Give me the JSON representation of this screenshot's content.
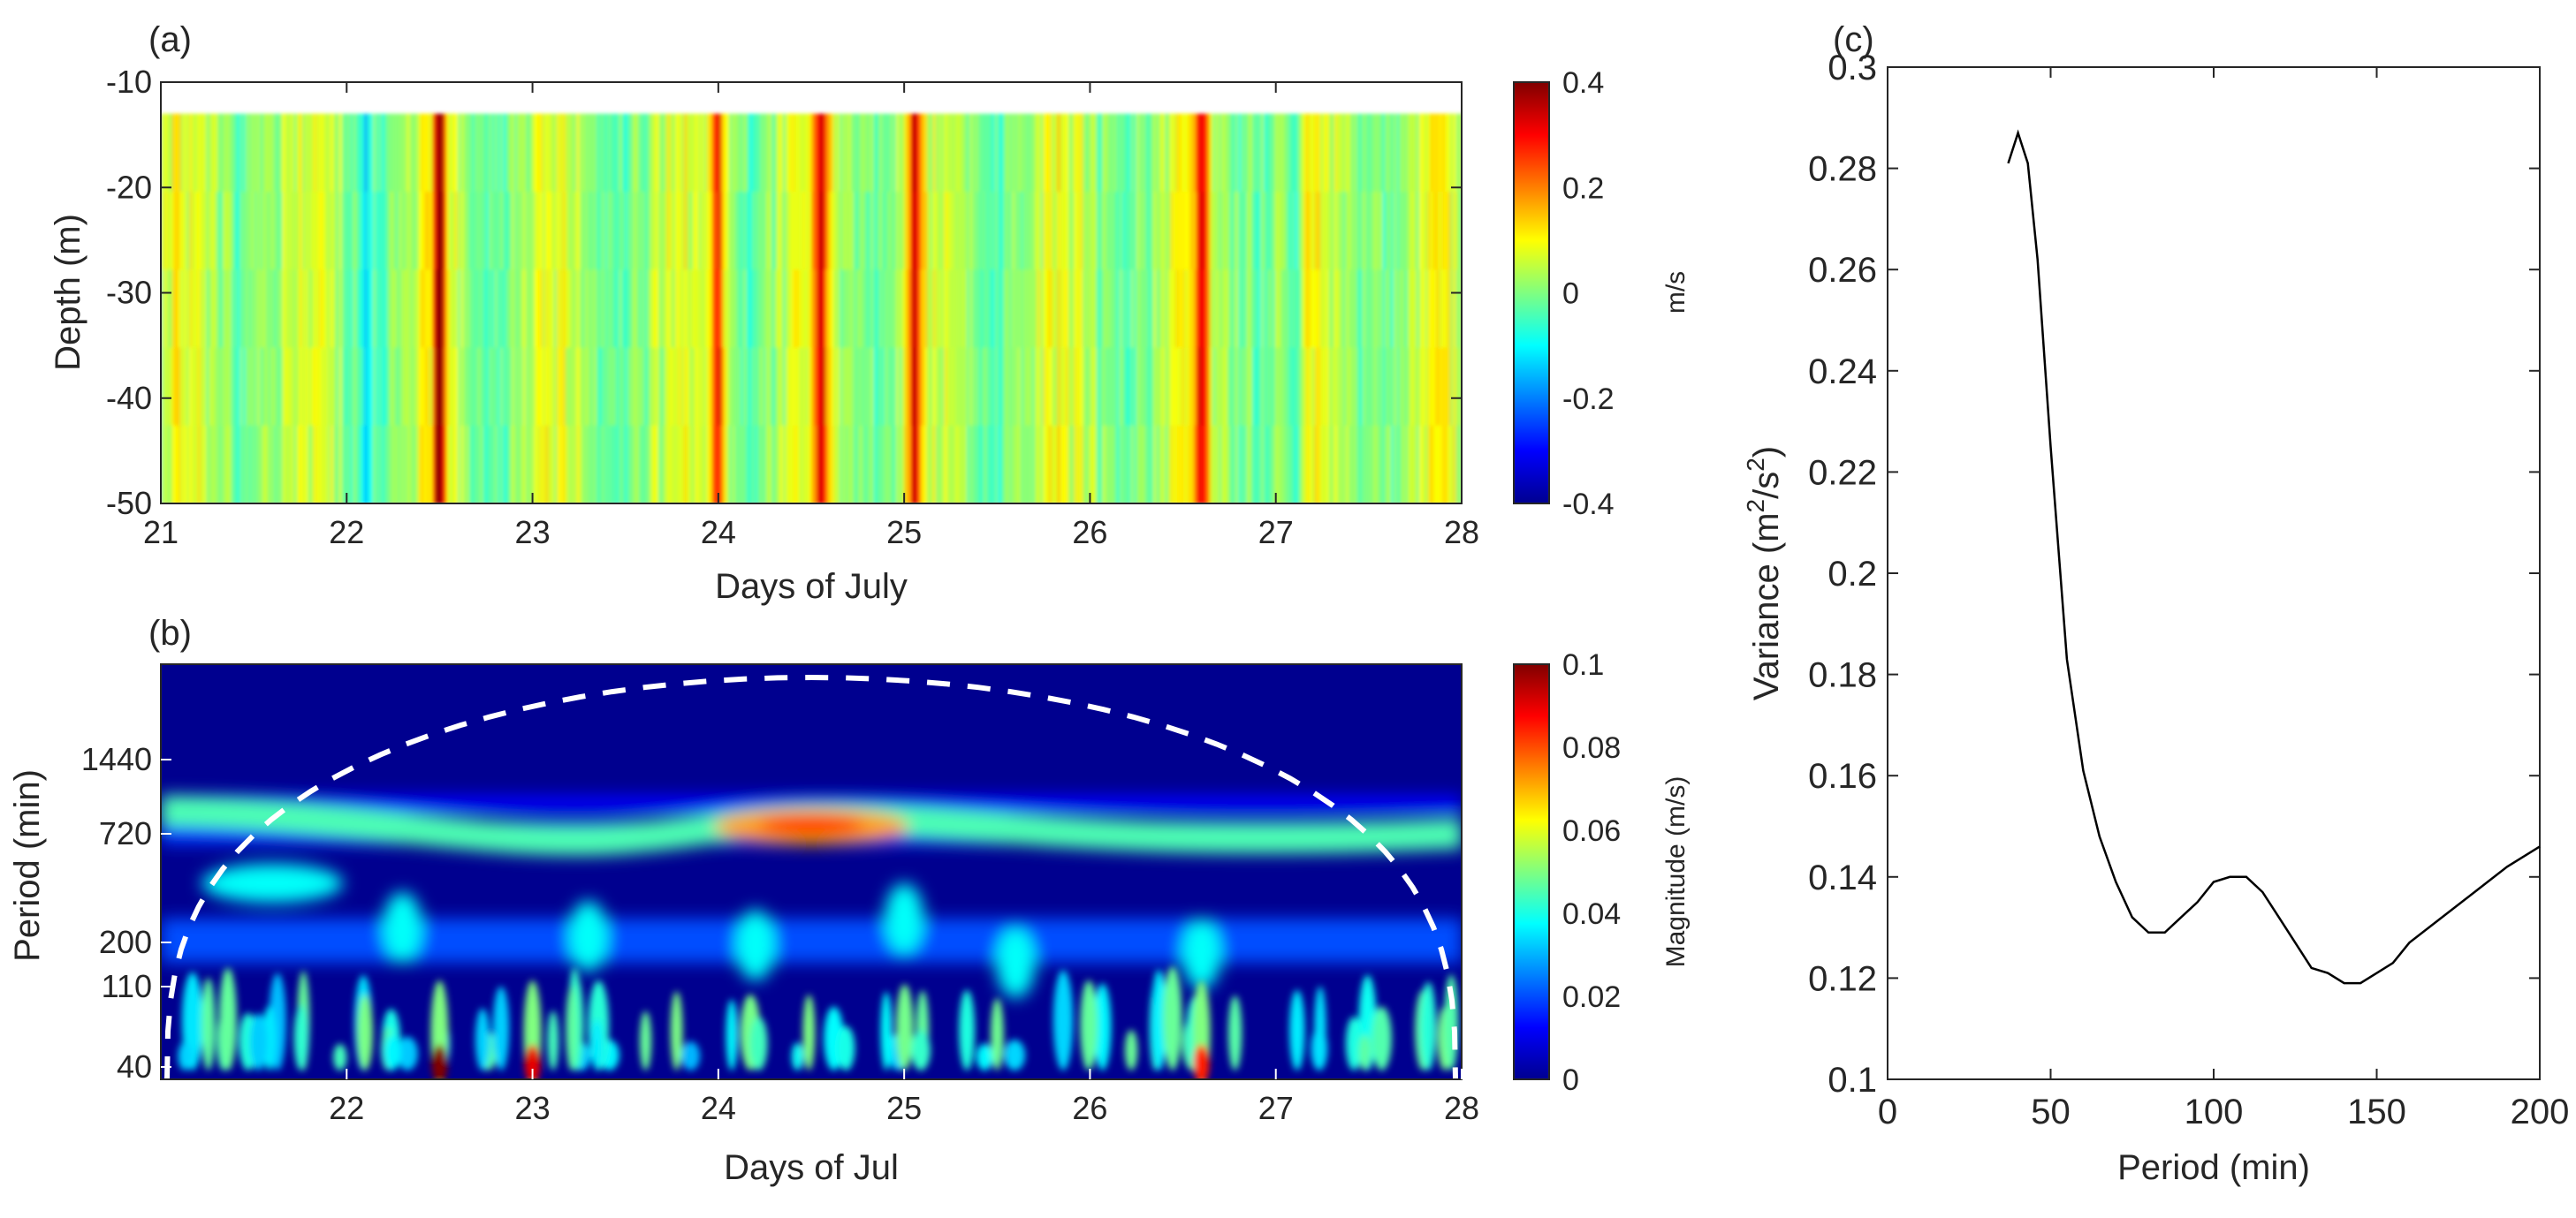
{
  "chart_data": [
    {
      "panel_label": "(a)",
      "type": "heatmap",
      "xlabel": "Days of July",
      "ylabel": "Depth (m)",
      "xlim": [
        21,
        28
      ],
      "ylim": [
        -50,
        -10
      ],
      "xticks": [
        "21",
        "22",
        "23",
        "24",
        "25",
        "26",
        "27",
        "28"
      ],
      "yticks": [
        "-10",
        "-20",
        "-30",
        "-40",
        "-50"
      ],
      "data_top_depth": -13,
      "colorbar": {
        "label": "m/s",
        "range": [
          -0.4,
          0.4
        ],
        "ticks": [
          "0.4",
          "0.2",
          "0",
          "-0.2",
          "-0.4"
        ],
        "colormap": "jet"
      },
      "strong_positive_days": [
        24.55,
        25.05,
        22.5,
        24.0,
        26.6
      ],
      "strong_negative_days": [
        22.1,
        27.1
      ]
    },
    {
      "panel_label": "(b)",
      "type": "heatmap",
      "xlabel": "Days of Jul",
      "ylabel": "Period (min)",
      "xlim": [
        21,
        28
      ],
      "xticks": [
        "22",
        "23",
        "24",
        "25",
        "26",
        "27",
        "28"
      ],
      "yticks": [
        "1440",
        "720",
        "200",
        "110",
        "40"
      ],
      "colorbar": {
        "label": "Magnitude (m/s)",
        "range": [
          0,
          0.1
        ],
        "ticks": [
          "0.1",
          "0.08",
          "0.06",
          "0.04",
          "0.02",
          "0"
        ],
        "colormap": "jet"
      },
      "cone_of_influence": "dashed white arc",
      "features": [
        {
          "period_min": 720,
          "day_range": [
            21.0,
            25.3
          ],
          "peak_day": 24.5,
          "peak_magnitude": 0.075
        },
        {
          "period_min": 40,
          "day": 22.5,
          "magnitude": 0.1
        },
        {
          "period_min": 40,
          "day": 23.0,
          "magnitude": 0.09
        },
        {
          "period_min": 40,
          "day": 26.6,
          "magnitude": 0.085
        }
      ]
    },
    {
      "panel_label": "(c)",
      "type": "line",
      "xlabel": "Period (min)",
      "ylabel_main": "Variance (m",
      "ylabel_sup1": "2",
      "ylabel_mid": "/s",
      "ylabel_sup2": "2",
      "ylabel_end": ")",
      "xlim": [
        0,
        200
      ],
      "ylim": [
        0.1,
        0.3
      ],
      "xticks": [
        "0",
        "50",
        "100",
        "150",
        "200"
      ],
      "yticks": [
        "0.3",
        "0.28",
        "0.26",
        "0.24",
        "0.22",
        "0.2",
        "0.18",
        "0.16",
        "0.14",
        "0.12",
        "0.1"
      ],
      "series": [
        {
          "x": [
            37,
            40,
            43,
            46,
            50,
            55,
            60,
            65,
            70,
            75,
            80,
            85,
            90,
            95,
            100,
            105,
            110,
            115,
            120,
            125,
            130,
            135,
            140,
            145,
            150,
            155,
            160,
            170,
            180,
            190,
            200
          ],
          "y": [
            0.281,
            0.287,
            0.281,
            0.262,
            0.225,
            0.183,
            0.161,
            0.148,
            0.139,
            0.132,
            0.129,
            0.129,
            0.132,
            0.135,
            0.139,
            0.14,
            0.14,
            0.137,
            0.132,
            0.127,
            0.122,
            0.121,
            0.119,
            0.119,
            0.121,
            0.123,
            0.127,
            0.132,
            0.137,
            0.142,
            0.146
          ]
        }
      ]
    }
  ]
}
